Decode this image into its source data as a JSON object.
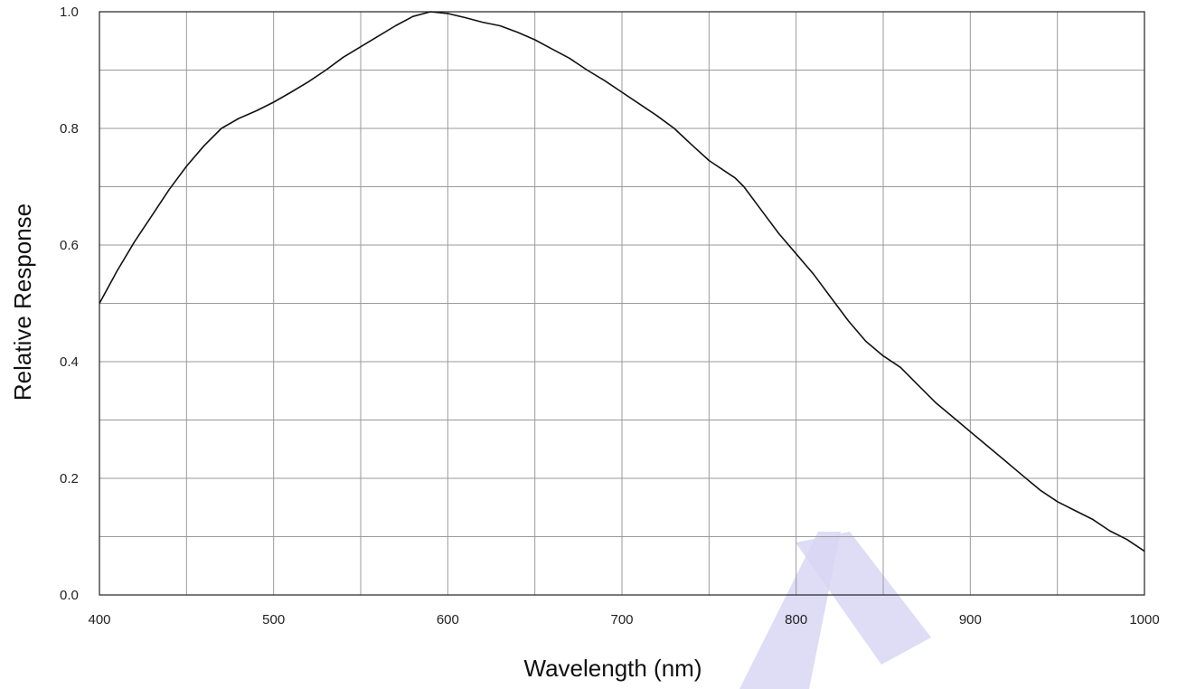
{
  "chart_data": {
    "type": "line",
    "xlabel": "Wavelength (nm)",
    "ylabel": "Relative Response",
    "xlim": [
      400,
      1000
    ],
    "ylim": [
      0.0,
      1.0
    ],
    "x_major_ticks": [
      400,
      500,
      600,
      700,
      800,
      900,
      1000
    ],
    "x_tick_labels": [
      "400",
      "500",
      "600",
      "700",
      "800",
      "900",
      "1000"
    ],
    "x_grid": [
      400,
      450,
      500,
      550,
      600,
      650,
      700,
      750,
      800,
      850,
      900,
      950,
      1000
    ],
    "y_major_ticks": [
      0.0,
      0.2,
      0.4,
      0.6,
      0.8,
      1.0
    ],
    "y_tick_labels": [
      "0.0",
      "0.2",
      "0.4",
      "0.6",
      "0.8",
      "1.0"
    ],
    "y_grid": [
      0.0,
      0.1,
      0.2,
      0.3,
      0.4,
      0.5,
      0.6,
      0.7,
      0.8,
      0.9,
      1.0
    ],
    "grid": true,
    "line_color": "#111111",
    "grid_color": "#9a9a9a",
    "watermark_color": "#d9d6f5",
    "series": [
      {
        "x": [
          400,
          410,
          420,
          430,
          440,
          450,
          460,
          470,
          480,
          490,
          500,
          510,
          520,
          530,
          540,
          550,
          560,
          570,
          580,
          590,
          600,
          610,
          620,
          630,
          640,
          650,
          660,
          670,
          680,
          690,
          700,
          710,
          720,
          730,
          740,
          750,
          760,
          765,
          770,
          780,
          790,
          800,
          810,
          820,
          830,
          840,
          850,
          860,
          870,
          880,
          890,
          900,
          910,
          920,
          930,
          940,
          950,
          960,
          970,
          980,
          990,
          1000
        ],
        "y": [
          0.5,
          0.555,
          0.605,
          0.65,
          0.695,
          0.735,
          0.77,
          0.8,
          0.817,
          0.83,
          0.845,
          0.862,
          0.88,
          0.9,
          0.922,
          0.94,
          0.958,
          0.976,
          0.992,
          1.0,
          0.997,
          0.99,
          0.982,
          0.976,
          0.965,
          0.952,
          0.936,
          0.92,
          0.9,
          0.882,
          0.862,
          0.842,
          0.822,
          0.8,
          0.772,
          0.745,
          0.725,
          0.715,
          0.7,
          0.66,
          0.62,
          0.585,
          0.55,
          0.51,
          0.47,
          0.435,
          0.41,
          0.39,
          0.36,
          0.33,
          0.305,
          0.28,
          0.255,
          0.23,
          0.205,
          0.18,
          0.16,
          0.145,
          0.13,
          0.11,
          0.095,
          0.075
        ]
      }
    ]
  }
}
